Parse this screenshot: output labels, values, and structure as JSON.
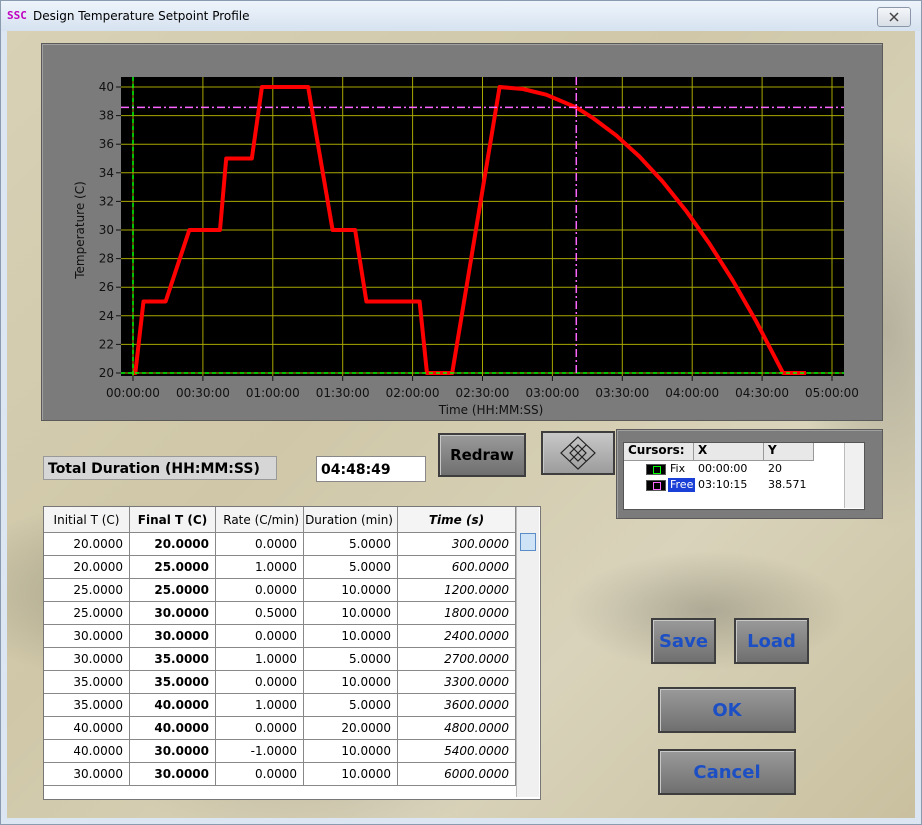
{
  "window": {
    "icon": "SSC",
    "title": "Design Temperature Setpoint Profile"
  },
  "chart_data": {
    "type": "line",
    "y_label": "Temperature (C)",
    "x_label": "Time (HH:MM:SS)",
    "color": "#ff0000",
    "x": [
      0,
      60,
      270,
      840,
      1450,
      2240,
      2400,
      3060,
      3320,
      4510,
      5140,
      5720,
      6010,
      7380,
      7570,
      8220,
      9440,
      10040,
      10640,
      11415,
      11840,
      12440,
      13040,
      13640,
      14240,
      14840,
      15440,
      16040,
      16740,
      17329
    ],
    "values": [
      20,
      20,
      25,
      25,
      30,
      30,
      35,
      35,
      40,
      40,
      30,
      30,
      25,
      25,
      20,
      20,
      40,
      39.86,
      39.46,
      38.571,
      37.84,
      36.62,
      35.14,
      33.38,
      31.35,
      29.06,
      26.49,
      23.65,
      20,
      20
    ],
    "xlim": [
      0,
      18000
    ],
    "ylim": [
      20,
      40
    ],
    "xticks": [
      {
        "value": 0,
        "label": "00:00:00"
      },
      {
        "value": 1800,
        "label": "00:30:00"
      },
      {
        "value": 3600,
        "label": "01:00:00"
      },
      {
        "value": 5400,
        "label": "01:30:00"
      },
      {
        "value": 7200,
        "label": "02:00:00"
      },
      {
        "value": 9000,
        "label": "02:30:00"
      },
      {
        "value": 10800,
        "label": "03:00:00"
      },
      {
        "value": 12600,
        "label": "03:30:00"
      },
      {
        "value": 14400,
        "label": "04:00:00"
      },
      {
        "value": 16200,
        "label": "04:30:00"
      },
      {
        "value": 18000,
        "label": "05:00:00"
      }
    ],
    "yticks": [
      20,
      22,
      24,
      26,
      28,
      30,
      32,
      34,
      36,
      38,
      40
    ],
    "grid": true,
    "cursors": [
      {
        "name": "Fix",
        "color": "#00ff00",
        "x": 0,
        "x_label": "00:00:00",
        "y": 20
      },
      {
        "name": "Free",
        "color": "#ff66ff",
        "x": 11415,
        "x_label": "03:10:15",
        "y": 38.571
      }
    ]
  },
  "cursor_table": {
    "headers": [
      "Cursors:",
      "X",
      "Y"
    ]
  },
  "total_duration": {
    "label": "Total Duration (HH:MM:SS)",
    "value": "04:48:49"
  },
  "buttons": {
    "redraw": "Redraw",
    "save": "Save",
    "load": "Load",
    "ok": "OK",
    "cancel": "Cancel"
  },
  "table": {
    "headers": [
      "Initial T (C)",
      "Final T (C)",
      "Rate (C/min)",
      "Duration  (min)",
      "Time (s)"
    ],
    "rows": [
      [
        "20.0000",
        "20.0000",
        "0.0000",
        "5.0000",
        "300.0000"
      ],
      [
        "20.0000",
        "25.0000",
        "1.0000",
        "5.0000",
        "600.0000"
      ],
      [
        "25.0000",
        "25.0000",
        "0.0000",
        "10.0000",
        "1200.0000"
      ],
      [
        "25.0000",
        "30.0000",
        "0.5000",
        "10.0000",
        "1800.0000"
      ],
      [
        "30.0000",
        "30.0000",
        "0.0000",
        "10.0000",
        "2400.0000"
      ],
      [
        "30.0000",
        "35.0000",
        "1.0000",
        "5.0000",
        "2700.0000"
      ],
      [
        "35.0000",
        "35.0000",
        "0.0000",
        "10.0000",
        "3300.0000"
      ],
      [
        "35.0000",
        "40.0000",
        "1.0000",
        "5.0000",
        "3600.0000"
      ],
      [
        "40.0000",
        "40.0000",
        "0.0000",
        "20.0000",
        "4800.0000"
      ],
      [
        "40.0000",
        "30.0000",
        "-1.0000",
        "10.0000",
        "5400.0000"
      ],
      [
        "30.0000",
        "30.0000",
        "0.0000",
        "10.0000",
        "6000.0000"
      ]
    ]
  }
}
